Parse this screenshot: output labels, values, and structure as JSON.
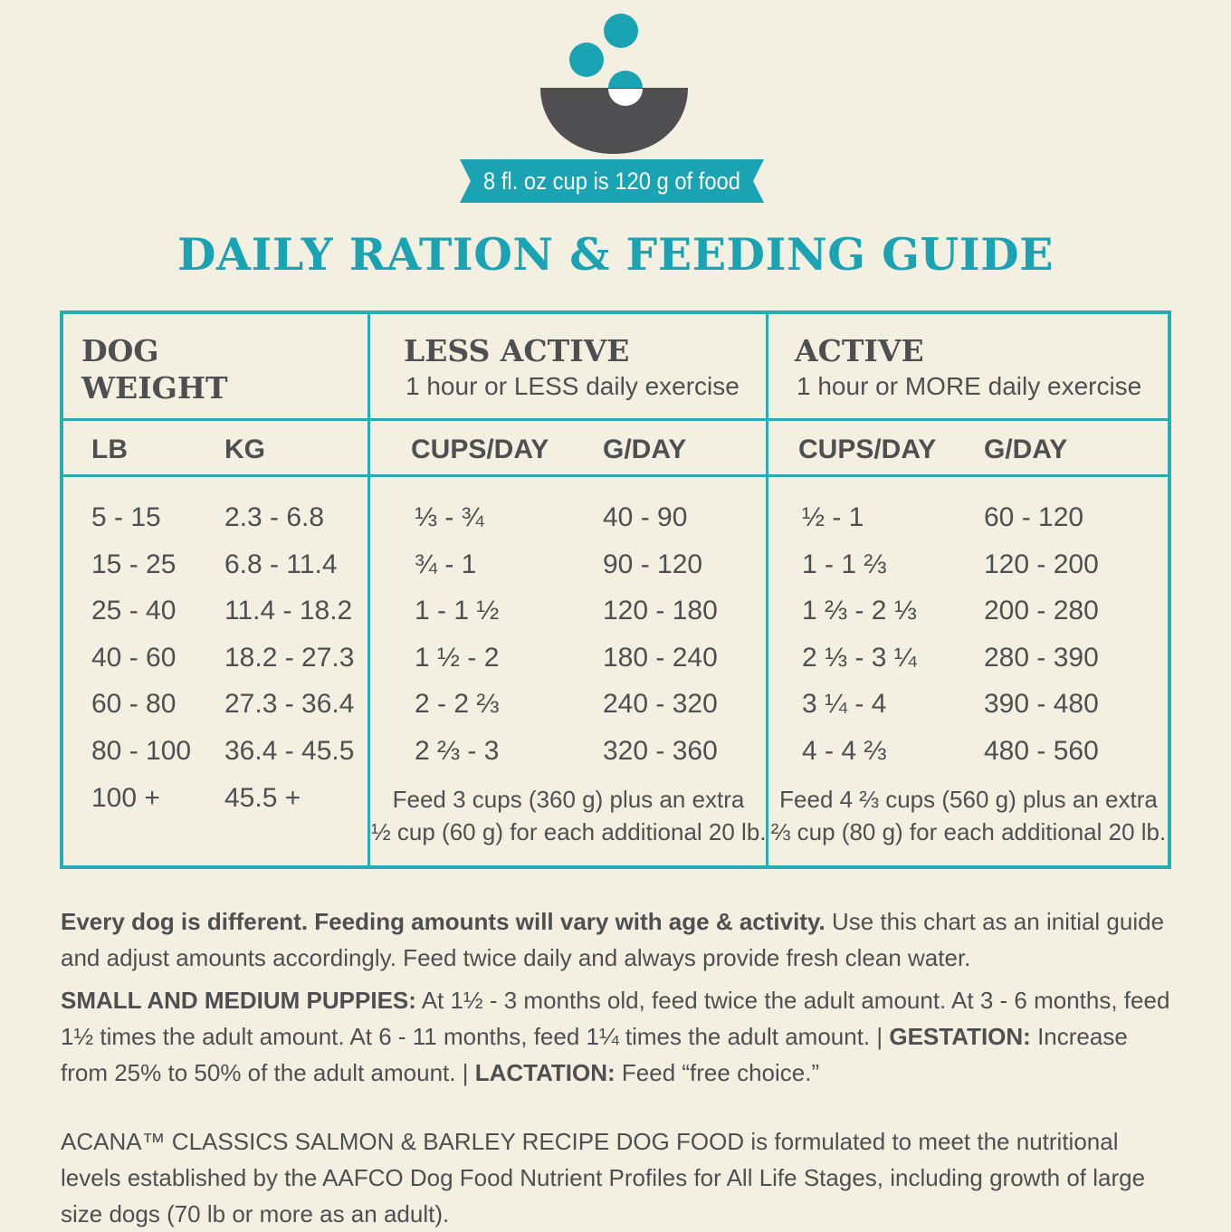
{
  "header": {
    "banner": "8 fl. oz cup is 120 g of food",
    "title": "DAILY RATION & FEEDING GUIDE"
  },
  "colors": {
    "teal": "#1aa3b3",
    "dark_gray": "#4f4f51",
    "background": "#f3efe1"
  },
  "icons": {
    "bowl": "food-bowl-icon"
  },
  "table": {
    "groups": [
      {
        "title_line1": "DOG",
        "title_line2": "WEIGHT"
      },
      {
        "title": "LESS ACTIVE",
        "subtitle": "1 hour or LESS daily exercise"
      },
      {
        "title": "ACTIVE",
        "subtitle": "1 hour or MORE daily exercise"
      }
    ],
    "columns": [
      "LB",
      "KG",
      "CUPS/DAY",
      "G/DAY",
      "CUPS/DAY",
      "G/DAY"
    ],
    "rows": [
      [
        "5 - 15",
        "2.3 - 6.8",
        "⅓ - ¾",
        "40 - 90",
        "½ - 1",
        "60 - 120"
      ],
      [
        "15 - 25",
        "6.8 - 11.4",
        "¾ - 1",
        "90 - 120",
        "1 - 1 ⅔",
        "120 - 200"
      ],
      [
        "25 - 40",
        "11.4 - 18.2",
        "1 - 1 ½",
        "120 - 180",
        "1 ⅔ - 2 ⅓",
        "200 - 280"
      ],
      [
        "40 - 60",
        "18.2 - 27.3",
        "1 ½ - 2",
        "180 - 240",
        "2 ⅓ - 3 ¼",
        "280 - 390"
      ],
      [
        "60 - 80",
        "27.3 - 36.4",
        "2 - 2 ⅔",
        "240 - 320",
        "3 ¼ - 4",
        "390 - 480"
      ],
      [
        "80 - 100",
        "36.4 - 45.5",
        "2 ⅔ - 3",
        "320 - 360",
        "4 - 4 ⅔",
        "480 - 560"
      ],
      [
        "100 +",
        "45.5 +"
      ]
    ],
    "notes": {
      "less_active_line1": "Feed 3 cups (360 g) plus an extra",
      "less_active_line2": "½ cup (60 g) for each additional 20 lb.",
      "active_line1": "Feed 4 ⅔ cups (560 g) plus an extra",
      "active_line2": "⅔ cup (80 g) for each additional 20 lb."
    }
  },
  "paragraphs": {
    "p1_bold": "Every dog is different. Feeding amounts will vary with age & activity.",
    "p1_text": " Use this chart as an initial guide and adjust amounts accordingly. Feed twice daily and always provide fresh clean water.",
    "p2_bold1": "SMALL AND MEDIUM PUPPIES:",
    "p2_text1": " At 1½ - 3 months old, feed twice the adult amount. At 3 - 6 months, feed 1½ times the adult amount. At 6 - 11 months, feed 1¼ times the adult amount.  |  ",
    "p2_bold2": "GESTATION:",
    "p2_text2": " Increase from 25% to 50% of the adult amount.  |  ",
    "p2_bold3": "LACTATION:",
    "p2_text3": " Feed “free choice.”",
    "p3_text": "ACANA™ CLASSICS SALMON & BARLEY RECIPE DOG FOOD is formulated to meet the nutritional levels established by the AAFCO Dog Food Nutrient Profiles for All Life Stages, including growth of large size dogs (70 lb or more as an adult)."
  }
}
